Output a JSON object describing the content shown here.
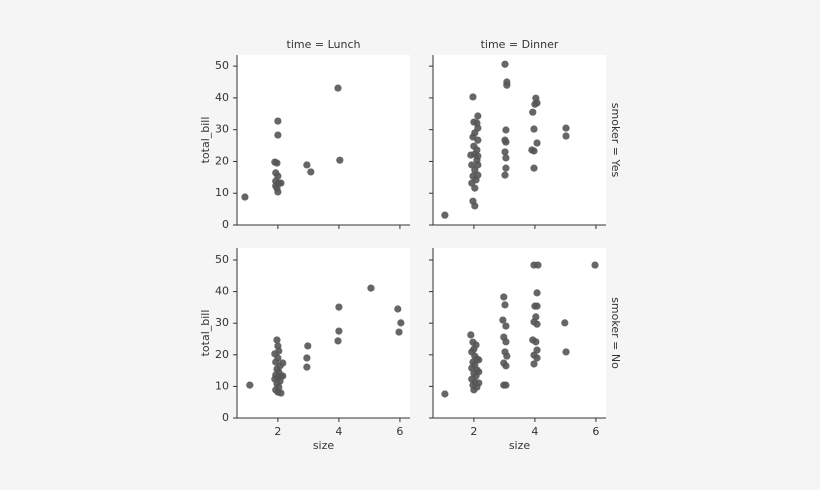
{
  "chart_data": [
    {
      "type": "scatter",
      "title": "time = Lunch",
      "ylabel": "total_bill",
      "color": "#555555",
      "xlim": [
        0.66,
        6.33
      ],
      "ylim": [
        0,
        53.5
      ],
      "xticks": [
        2,
        4,
        6
      ],
      "yticks": [
        0,
        10,
        20,
        30,
        40,
        50
      ],
      "xtick_labels": false,
      "ytick_labels": true,
      "x": [
        0.92,
        2.0,
        2.0,
        1.9,
        1.97,
        1.93,
        2.0,
        1.93,
        2.03,
        2.1,
        1.93,
        2.0,
        1.97,
        2.95,
        3.08,
        3.97,
        4.03
      ],
      "values": [
        8.8,
        32.7,
        28.3,
        19.8,
        19.5,
        16.4,
        15.4,
        13.8,
        13.2,
        13.2,
        12.3,
        10.4,
        11.6,
        18.9,
        16.7,
        43.1,
        20.4
      ]
    },
    {
      "type": "scatter",
      "title": "time = Dinner",
      "row_title": "smoker = Yes",
      "color": "#555555",
      "xlim": [
        0.66,
        6.33
      ],
      "ylim": [
        0,
        53.5
      ],
      "xticks": [
        2,
        4,
        6
      ],
      "yticks": [
        0,
        10,
        20,
        30,
        40,
        50
      ],
      "xtick_labels": false,
      "ytick_labels": false,
      "x": [
        1.05,
        1.97,
        2.0,
        2.1,
        2.03,
        1.97,
        2.0,
        2.1,
        1.9,
        2.03,
        2.1,
        1.93,
        2.03,
        1.97,
        2.07,
        1.93,
        2.03,
        1.97,
        2.03,
        2.13,
        2.13,
        2.13,
        2.13,
        2.13,
        2.13,
        3.02,
        3.08,
        3.08,
        3.05,
        3.02,
        3.05,
        3.02,
        3.05,
        3.05,
        3.02,
        4.03,
        4.0,
        3.93,
        4.07,
        3.97,
        4.07,
        3.9,
        3.97,
        3.97,
        5.02,
        5.02
      ],
      "values": [
        3.1,
        40.3,
        32.4,
        32.1,
        29,
        27.7,
        24.8,
        23.6,
        22,
        22.3,
        20.4,
        18.9,
        17.3,
        15.4,
        14.2,
        13.2,
        11.6,
        7.5,
        6,
        34.3,
        30.5,
        26.7,
        21.7,
        18.9,
        15.7,
        50.6,
        45,
        44,
        29.9,
        26.7,
        26.1,
        23,
        21.1,
        17.9,
        15.7,
        39.9,
        38,
        35.5,
        38.4,
        30.2,
        25.8,
        23.6,
        23.3,
        17.9,
        30.5,
        28
      ]
    },
    {
      "type": "scatter",
      "xlabel": "size",
      "ylabel": "total_bill",
      "color": "#555555",
      "xlim": [
        0.66,
        6.33
      ],
      "ylim": [
        0,
        53.8
      ],
      "xticks": [
        2,
        4,
        6
      ],
      "yticks": [
        0,
        10,
        20,
        30,
        40,
        50
      ],
      "xtick_labels": true,
      "ytick_labels": true,
      "x": [
        1.08,
        1.97,
        2.0,
        2.03,
        1.9,
        2.0,
        1.93,
        2.07,
        1.97,
        2.03,
        1.93,
        2.1,
        2.0,
        1.9,
        2.07,
        1.97,
        2.03,
        1.93,
        2.0,
        2.1,
        2.16,
        2.16,
        2.98,
        2.95,
        2.95,
        4.0,
        4.0,
        3.97,
        5.05,
        5.93,
        6.03,
        5.97
      ],
      "values": [
        10.4,
        24.7,
        22.8,
        21.2,
        20.3,
        19,
        17.7,
        16.5,
        15.5,
        14.6,
        13.6,
        13.3,
        12.7,
        12.3,
        11.7,
        10.8,
        9.8,
        8.9,
        8.2,
        7.9,
        17.4,
        13.3,
        22.8,
        19,
        16.1,
        35.1,
        27.5,
        24.4,
        41.1,
        34.5,
        30.1,
        27.2
      ]
    },
    {
      "type": "scatter",
      "xlabel": "size",
      "row_title": "smoker = No",
      "color": "#555555",
      "xlim": [
        0.66,
        6.33
      ],
      "ylim": [
        0,
        53.8
      ],
      "xticks": [
        2,
        4,
        6
      ],
      "yticks": [
        0,
        10,
        20,
        30,
        40,
        50
      ],
      "xtick_labels": true,
      "ytick_labels": false,
      "x": [
        1.05,
        1.9,
        1.97,
        2.07,
        2.0,
        1.93,
        2.03,
        2.1,
        1.97,
        2.03,
        1.93,
        2.1,
        2.0,
        2.07,
        1.93,
        2.03,
        1.97,
        2.1,
        2.0,
        2.16,
        2.16,
        2.16,
        2.98,
        3.02,
        2.95,
        3.05,
        2.98,
        3.05,
        3.02,
        3.08,
        2.98,
        3.05,
        2.98,
        3.05,
        3.97,
        4.1,
        4.07,
        4.0,
        4.07,
        4.03,
        3.97,
        4.07,
        3.93,
        4.03,
        4.07,
        3.97,
        4.07,
        3.97,
        4.98,
        5.02,
        5.97
      ],
      "values": [
        7.6,
        26.3,
        24,
        23.1,
        21.8,
        20.9,
        19.6,
        18.7,
        17.7,
        16.8,
        15.8,
        15.2,
        14.2,
        13.3,
        12.3,
        11.4,
        10.4,
        9.8,
        8.9,
        18.4,
        14.6,
        11.1,
        38.3,
        35.8,
        31,
        29.1,
        25.6,
        24.1,
        20.9,
        19.6,
        17.4,
        16.5,
        10.4,
        10.4,
        48.4,
        48.4,
        39.6,
        35.4,
        35.4,
        32,
        30.4,
        29.7,
        24.7,
        24.1,
        21.5,
        19.9,
        19,
        17.1,
        30.1,
        20.9,
        48.4
      ]
    }
  ]
}
